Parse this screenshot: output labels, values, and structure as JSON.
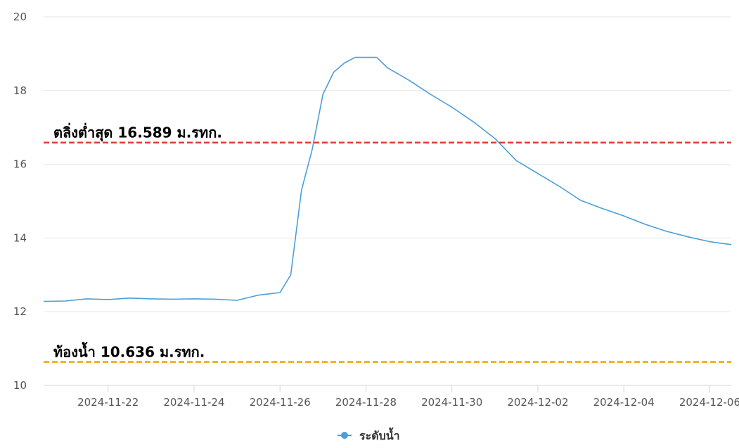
{
  "chart_data": {
    "type": "line",
    "title": "",
    "xlabel": "",
    "ylabel": "",
    "ylim": [
      10,
      20
    ],
    "yticks": [
      10,
      12,
      14,
      16,
      18,
      20
    ],
    "y_tick_labels": [
      "10",
      "12",
      "14",
      "16",
      "18",
      "20"
    ],
    "xlim": [
      "2024-11-21",
      "2024-12-07"
    ],
    "x_tick_labels": [
      "2024-11-22",
      "2024-11-24",
      "2024-11-26",
      "2024-11-28",
      "2024-11-30",
      "2024-12-02",
      "2024-12-04",
      "2024-12-06"
    ],
    "grid": true,
    "legend_position": "bottom",
    "series": [
      {
        "name": "ระดับน้ำ",
        "color": "#4a9edb",
        "x": [
          "2024-11-21",
          "2024-11-21 12:00",
          "2024-11-22",
          "2024-11-22 12:00",
          "2024-11-23",
          "2024-11-23 12:00",
          "2024-11-24",
          "2024-11-24 12:00",
          "2024-11-25",
          "2024-11-25 12:00",
          "2024-11-26",
          "2024-11-26 12:00",
          "2024-11-26 18:00",
          "2024-11-27",
          "2024-11-27 06:00",
          "2024-11-27 12:00",
          "2024-11-27 18:00",
          "2024-11-28",
          "2024-11-28 06:00",
          "2024-11-28 12:00",
          "2024-11-28 18:00",
          "2024-11-29",
          "2024-11-29 12:00",
          "2024-11-30",
          "2024-11-30 12:00",
          "2024-12-01",
          "2024-12-01 12:00",
          "2024-12-02",
          "2024-12-02 12:00",
          "2024-12-03",
          "2024-12-03 12:00",
          "2024-12-04",
          "2024-12-04 12:00",
          "2024-12-05",
          "2024-12-05 12:00",
          "2024-12-06",
          "2024-12-06 12:00",
          "2024-12-07"
        ],
        "values": [
          12.28,
          12.29,
          12.35,
          12.33,
          12.37,
          12.35,
          12.34,
          12.35,
          12.34,
          12.31,
          12.45,
          12.52,
          13.0,
          15.3,
          16.4,
          17.9,
          18.5,
          18.75,
          18.9,
          18.9,
          18.9,
          18.62,
          18.28,
          17.9,
          17.55,
          17.15,
          16.7,
          16.1,
          15.75,
          15.4,
          15.02,
          14.8,
          14.6,
          14.37,
          14.18,
          14.03,
          13.9,
          13.82
        ]
      }
    ],
    "reference_lines": [
      {
        "label": "ตลิ่งต่ำสุด 16.589 ม.รทก.",
        "value": 16.589,
        "color": "#e03a3a"
      },
      {
        "label": "ท้องน้ำ 10.636 ม.รทก.",
        "value": 10.636,
        "color": "#f0a500"
      }
    ]
  }
}
